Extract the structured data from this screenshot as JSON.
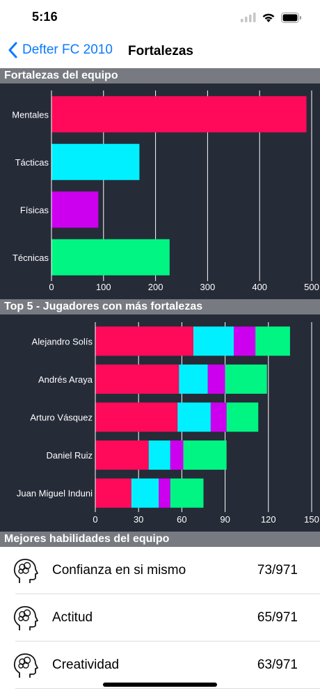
{
  "status": {
    "time": "5:16"
  },
  "nav": {
    "back_label": "Defter FC 2010",
    "title": "Fortalezas"
  },
  "sections": {
    "team_strengths": "Fortalezas del equipo",
    "top_players": "Top 5 - Jugadores con más fortalezas",
    "best_skills": "Mejores habilidades del equipo"
  },
  "colors": {
    "accent": "#0a7aff",
    "panel_bg": "#262b38",
    "section_header": "#777a80",
    "series": [
      "#ff0a5a",
      "#00f0ff",
      "#cc00ee",
      "#00f583"
    ]
  },
  "chart_data": [
    {
      "type": "bar",
      "orientation": "horizontal",
      "categories": [
        "Mentales",
        "Tácticas",
        "Físicas",
        "Técnicas"
      ],
      "values": [
        490,
        169,
        90,
        227
      ],
      "colors": [
        "#ff0a5a",
        "#00f0ff",
        "#cc00ee",
        "#00f583"
      ],
      "xlim": [
        0,
        500
      ],
      "xticks": [
        0,
        100,
        200,
        300,
        400,
        500
      ],
      "xtick_labels": [
        "0",
        "100",
        "200",
        "300",
        "400",
        "500"
      ],
      "grid": true
    },
    {
      "type": "bar",
      "orientation": "horizontal",
      "stacked": true,
      "categories": [
        "Alejandro Solís",
        "Andrés Araya",
        "Arturo Vásquez",
        "Daniel Ruiz",
        "Juan Miguel Induni"
      ],
      "series": [
        {
          "values": [
            68,
            58,
            57,
            37,
            25
          ]
        },
        {
          "values": [
            28,
            20,
            23,
            15,
            19
          ]
        },
        {
          "values": [
            15,
            12,
            11,
            9,
            8
          ]
        },
        {
          "values": [
            24,
            29,
            22,
            30,
            23
          ]
        }
      ],
      "colors": [
        "#ff0a5a",
        "#00f0ff",
        "#cc00ee",
        "#00f583"
      ],
      "xlim": [
        0,
        150
      ],
      "xticks": [
        0,
        30,
        60,
        90,
        120,
        150
      ],
      "xtick_labels": [
        "0",
        "30",
        "60",
        "90",
        "120",
        "150"
      ],
      "grid": true
    }
  ],
  "skills": [
    {
      "name": "Confianza en si mismo",
      "value": "73/971",
      "icon": "brain-head-icon"
    },
    {
      "name": "Actitud",
      "value": "65/971",
      "icon": "brain-head-icon"
    },
    {
      "name": "Creatividad",
      "value": "63/971",
      "icon": "brain-head-icon"
    }
  ]
}
